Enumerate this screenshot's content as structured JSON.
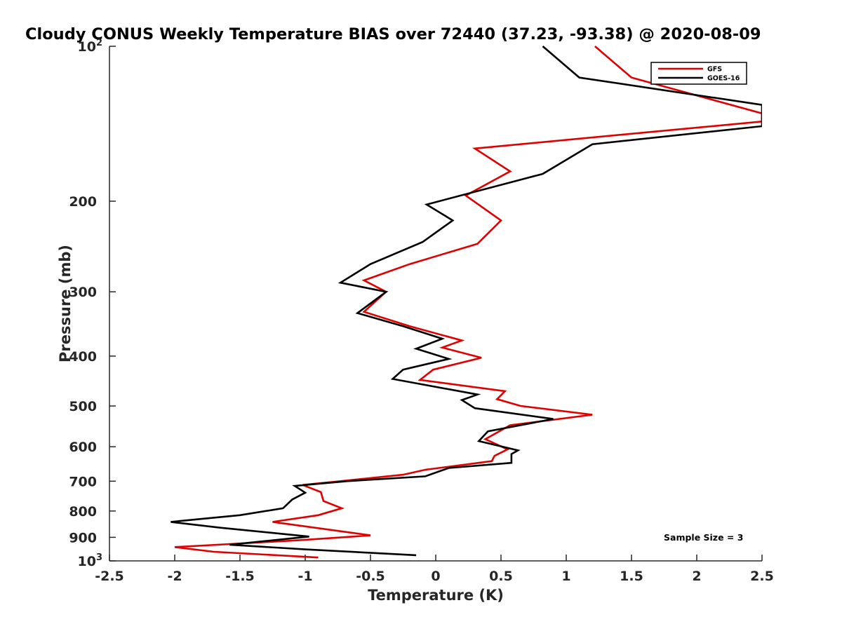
{
  "chart_data": {
    "type": "line",
    "title": "Cloudy CONUS Weekly Temperature BIAS over 72440 (37.23, -93.38) @ 2020-08-09",
    "xlabel": "Temperature (K)",
    "ylabel": "Pressure (mb)",
    "xlim": [
      -2.5,
      2.5
    ],
    "ylim": [
      1000,
      100
    ],
    "y_scale": "log",
    "y_reversed": true,
    "x_ticks": [
      {
        "value": -2.5,
        "label": "-2.5"
      },
      {
        "value": -2,
        "label": "-2"
      },
      {
        "value": -1.5,
        "label": "-1.5"
      },
      {
        "value": -1,
        "label": "-1"
      },
      {
        "value": -0.5,
        "label": "-0.5"
      },
      {
        "value": 0,
        "label": "0"
      },
      {
        "value": 0.5,
        "label": "0.5"
      },
      {
        "value": 1,
        "label": "1"
      },
      {
        "value": 1.5,
        "label": "1.5"
      },
      {
        "value": 2,
        "label": "2"
      },
      {
        "value": 2.5,
        "label": "2.5"
      }
    ],
    "y_ticks": [
      {
        "value": 100,
        "label": "10",
        "sup": "2"
      },
      {
        "value": 200,
        "label": "200"
      },
      {
        "value": 300,
        "label": "300"
      },
      {
        "value": 400,
        "label": "400"
      },
      {
        "value": 500,
        "label": "500"
      },
      {
        "value": 600,
        "label": "600"
      },
      {
        "value": 700,
        "label": "700"
      },
      {
        "value": 800,
        "label": "800"
      },
      {
        "value": 900,
        "label": "900"
      },
      {
        "value": 1000,
        "label": "10",
        "sup": "3"
      }
    ],
    "grid": false,
    "legend_position": "top-right",
    "annotation": "Sample Size = 3",
    "series": [
      {
        "name": "GFS",
        "color": "#e00000",
        "points": [
          [
            1.22,
            100
          ],
          [
            1.5,
            115
          ],
          [
            2.5,
            135
          ],
          [
            2.5,
            140
          ],
          [
            0.3,
            158
          ],
          [
            0.57,
            175
          ],
          [
            0.23,
            195
          ],
          [
            0.5,
            218
          ],
          [
            0.32,
            242
          ],
          [
            -0.2,
            265
          ],
          [
            -0.55,
            285
          ],
          [
            -0.38,
            300
          ],
          [
            -0.55,
            328
          ],
          [
            -0.2,
            350
          ],
          [
            0.2,
            373
          ],
          [
            0.05,
            385
          ],
          [
            0.35,
            403
          ],
          [
            -0.02,
            425
          ],
          [
            -0.12,
            445
          ],
          [
            0.53,
            468
          ],
          [
            0.47,
            485
          ],
          [
            0.65,
            500
          ],
          [
            1.2,
            520
          ],
          [
            0.57,
            545
          ],
          [
            0.38,
            580
          ],
          [
            0.55,
            607
          ],
          [
            0.45,
            625
          ],
          [
            0.43,
            640
          ],
          [
            -0.08,
            665
          ],
          [
            -0.25,
            680
          ],
          [
            -0.73,
            700
          ],
          [
            -1.02,
            712
          ],
          [
            -0.88,
            735
          ],
          [
            -0.86,
            765
          ],
          [
            -0.72,
            790
          ],
          [
            -0.9,
            815
          ],
          [
            -1.25,
            840
          ],
          [
            -0.5,
            892
          ],
          [
            -1.05,
            912
          ],
          [
            -2,
            940
          ],
          [
            -1.7,
            960
          ],
          [
            -0.9,
            985
          ]
        ]
      },
      {
        "name": "GOES-16",
        "color": "#000000",
        "points": [
          [
            0.82,
            100
          ],
          [
            1.1,
            115
          ],
          [
            2.5,
            130
          ],
          [
            2.5,
            143
          ],
          [
            1.2,
            155
          ],
          [
            0.82,
            177
          ],
          [
            -0.07,
            203
          ],
          [
            0.13,
            218
          ],
          [
            -0.1,
            240
          ],
          [
            -0.5,
            265
          ],
          [
            -0.73,
            288
          ],
          [
            -0.38,
            300
          ],
          [
            -0.6,
            330
          ],
          [
            -0.25,
            350
          ],
          [
            0.05,
            370
          ],
          [
            -0.15,
            387
          ],
          [
            0.1,
            405
          ],
          [
            -0.25,
            425
          ],
          [
            -0.33,
            443
          ],
          [
            0.32,
            475
          ],
          [
            0.2,
            487
          ],
          [
            0.3,
            505
          ],
          [
            0.9,
            530
          ],
          [
            0.4,
            560
          ],
          [
            0.33,
            585
          ],
          [
            0.63,
            610
          ],
          [
            0.58,
            620
          ],
          [
            0.58,
            645
          ],
          [
            0.1,
            660
          ],
          [
            -0.08,
            685
          ],
          [
            -0.68,
            700
          ],
          [
            -1.08,
            715
          ],
          [
            -1,
            737
          ],
          [
            -1.1,
            760
          ],
          [
            -1.17,
            790
          ],
          [
            -1.5,
            815
          ],
          [
            -2.03,
            840
          ],
          [
            -1.65,
            862
          ],
          [
            -0.97,
            897
          ],
          [
            -1.58,
            930
          ],
          [
            -1.0,
            950
          ],
          [
            -0.15,
            975
          ]
        ]
      }
    ]
  }
}
